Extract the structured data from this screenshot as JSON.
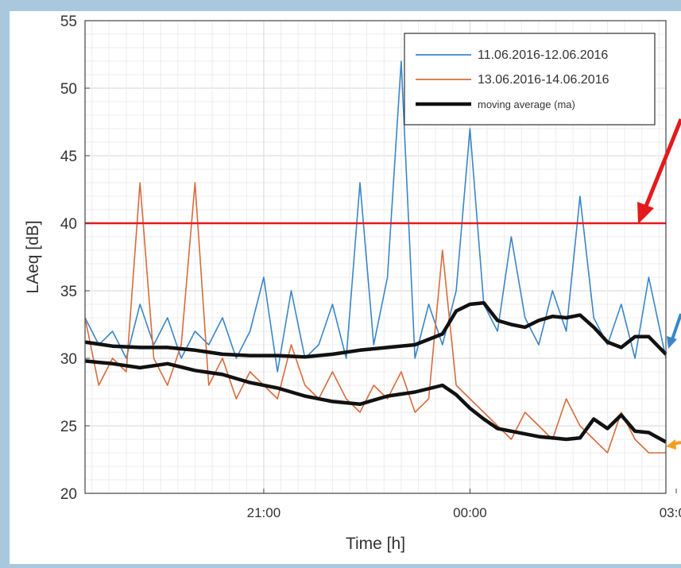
{
  "chart_data": {
    "type": "line",
    "title": "",
    "xlabel": "Time [h]",
    "ylabel": "LAeq [dB]",
    "ylim": [
      20,
      55
    ],
    "yticks": [
      "20",
      "25",
      "30",
      "35",
      "40",
      "45",
      "50",
      "55"
    ],
    "xlim_hours": [
      18.4,
      26.85
    ],
    "xticks": [
      {
        "label": "21:00",
        "hour": 21
      },
      {
        "label": "00:00",
        "hour": 24
      },
      {
        "label": "03:00",
        "hour": 27
      }
    ],
    "grid": true,
    "legend_position": "top-right",
    "threshold": {
      "value": 40,
      "color": "#e41a1c"
    },
    "series": [
      {
        "name": "11.06.2016-12.06.2016",
        "color": "#3a86c8",
        "x_hours": [
          18.4,
          18.6,
          18.8,
          19.0,
          19.2,
          19.4,
          19.6,
          19.8,
          20.0,
          20.2,
          20.4,
          20.6,
          20.8,
          21.0,
          21.2,
          21.4,
          21.6,
          21.8,
          22.0,
          22.2,
          22.4,
          22.6,
          22.8,
          23.0,
          23.2,
          23.4,
          23.6,
          23.8,
          24.0,
          24.2,
          24.4,
          24.6,
          24.8,
          25.0,
          25.2,
          25.4,
          25.6,
          25.8,
          26.0,
          26.2,
          26.4,
          26.6,
          26.85
        ],
        "values": [
          33,
          31,
          32,
          30,
          34,
          31,
          33,
          30,
          32,
          31,
          33,
          30,
          32,
          36,
          29,
          35,
          30,
          31,
          34,
          30,
          43,
          31,
          36,
          52,
          30,
          34,
          31,
          35,
          47,
          34,
          32,
          39,
          33,
          31,
          35,
          32,
          42,
          33,
          31,
          34,
          30,
          36,
          30
        ]
      },
      {
        "name": "13.06.2016-14.06.2016",
        "color": "#d86b3c",
        "x_hours": [
          18.4,
          18.6,
          18.8,
          19.0,
          19.2,
          19.4,
          19.6,
          19.8,
          20.0,
          20.2,
          20.4,
          20.6,
          20.8,
          21.0,
          21.2,
          21.4,
          21.6,
          21.8,
          22.0,
          22.2,
          22.4,
          22.6,
          22.8,
          23.0,
          23.2,
          23.4,
          23.6,
          23.8,
          24.0,
          24.2,
          24.4,
          24.6,
          24.8,
          25.0,
          25.2,
          25.4,
          25.6,
          25.8,
          26.0,
          26.2,
          26.4,
          26.6,
          26.85
        ],
        "values": [
          33,
          28,
          30,
          29,
          43,
          30,
          28,
          31,
          43,
          28,
          30,
          27,
          29,
          28,
          27,
          31,
          28,
          27,
          29,
          27,
          26,
          28,
          27,
          29,
          26,
          27,
          38,
          28,
          27,
          26,
          25,
          24,
          26,
          25,
          24,
          27,
          25,
          24,
          23,
          26,
          24,
          23,
          23
        ]
      },
      {
        "name": "moving average (ma)",
        "color": "#111111",
        "x_hours": [
          18.4,
          18.8,
          19.2,
          19.6,
          20.0,
          20.4,
          20.8,
          21.2,
          21.6,
          22.0,
          22.4,
          22.8,
          23.2,
          23.6,
          23.8,
          24.0,
          24.2,
          24.4,
          24.6,
          24.8,
          25.0,
          25.2,
          25.4,
          25.6,
          25.8,
          26.0,
          26.2,
          26.4,
          26.6,
          26.85
        ],
        "values": [
          31.2,
          30.9,
          30.8,
          30.8,
          30.6,
          30.3,
          30.2,
          30.2,
          30.1,
          30.3,
          30.6,
          30.8,
          31.0,
          31.8,
          33.5,
          34.0,
          34.1,
          32.8,
          32.5,
          32.3,
          32.8,
          33.1,
          33.0,
          33.2,
          32.3,
          31.2,
          30.8,
          31.6,
          31.6,
          30.3
        ]
      },
      {
        "name": "",
        "color": "#111111",
        "x_hours": [
          18.4,
          18.8,
          19.2,
          19.6,
          20.0,
          20.4,
          20.8,
          21.2,
          21.6,
          22.0,
          22.4,
          22.8,
          23.2,
          23.6,
          23.8,
          24.0,
          24.2,
          24.4,
          24.6,
          24.8,
          25.0,
          25.2,
          25.4,
          25.6,
          25.8,
          26.0,
          26.2,
          26.4,
          26.6,
          26.85
        ],
        "values": [
          29.8,
          29.6,
          29.3,
          29.6,
          29.1,
          28.8,
          28.2,
          27.8,
          27.2,
          26.8,
          26.6,
          27.2,
          27.5,
          28.0,
          27.3,
          26.3,
          25.5,
          24.8,
          24.6,
          24.4,
          24.2,
          24.1,
          24.0,
          24.1,
          25.5,
          24.8,
          25.8,
          24.6,
          24.5,
          23.8
        ]
      }
    ]
  }
}
